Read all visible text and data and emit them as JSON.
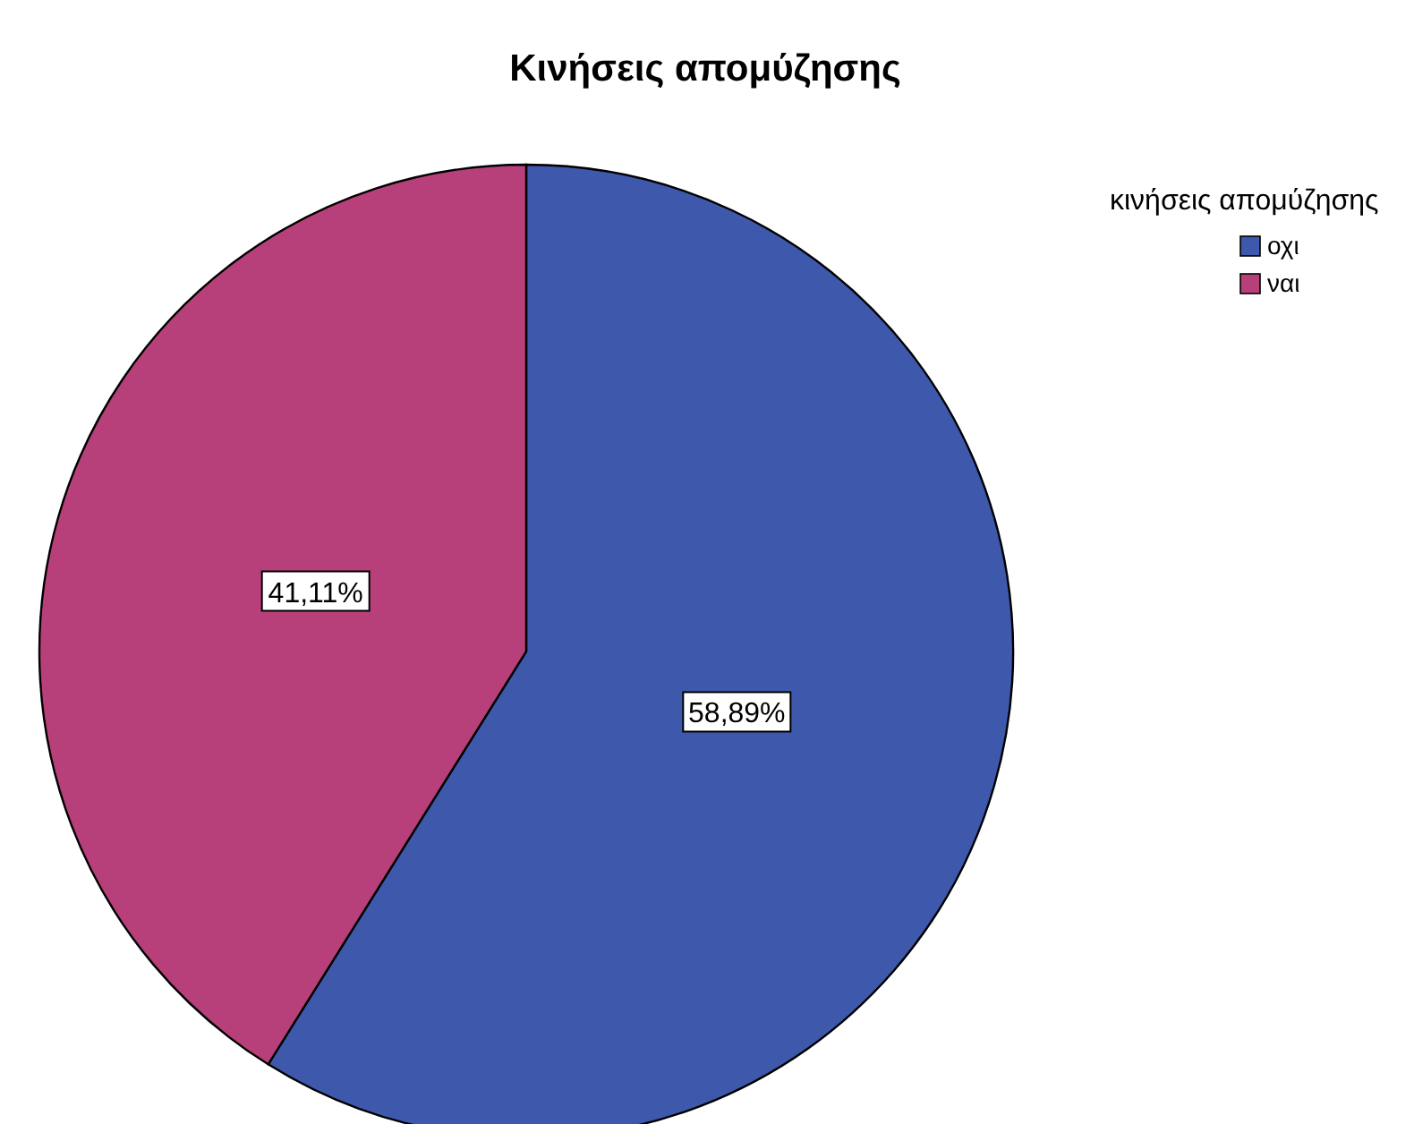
{
  "chart_data": {
    "type": "pie",
    "title": "Κινήσεις απομύζησης",
    "legend_title": "κινήσεις απομύζησης",
    "legend": "top right",
    "categories": [
      "οχι",
      "ναι"
    ],
    "values": [
      58.89,
      41.11
    ],
    "colors": [
      "#3e58ac",
      "#b8407a"
    ],
    "value_labels": [
      "58,89%",
      "41,11%"
    ]
  }
}
